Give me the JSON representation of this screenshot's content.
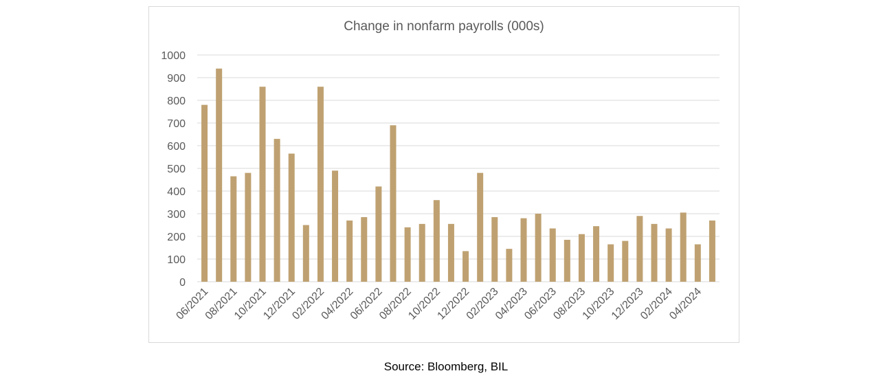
{
  "source": "Source: Bloomberg, BIL",
  "colors": {
    "bar": "#BFA171",
    "grid": "#d9d9d9",
    "text": "#595959",
    "frame": "#d9d9d9"
  },
  "chart_data": {
    "type": "bar",
    "title": "Change in nonfarm payrolls (000s)",
    "xlabel": "",
    "ylabel": "",
    "ylim": [
      0,
      1000
    ],
    "yticks": [
      0,
      100,
      200,
      300,
      400,
      500,
      600,
      700,
      800,
      900,
      1000
    ],
    "grid": true,
    "legend": "none",
    "categories": [
      "06/2021",
      "07/2021",
      "08/2021",
      "09/2021",
      "10/2021",
      "11/2021",
      "12/2021",
      "01/2022",
      "02/2022",
      "03/2022",
      "04/2022",
      "05/2022",
      "06/2022",
      "07/2022",
      "08/2022",
      "09/2022",
      "10/2022",
      "11/2022",
      "12/2022",
      "01/2023",
      "02/2023",
      "03/2023",
      "04/2023",
      "05/2023",
      "06/2023",
      "07/2023",
      "08/2023",
      "09/2023",
      "10/2023",
      "11/2023",
      "12/2023",
      "01/2024",
      "02/2024",
      "03/2024",
      "04/2024",
      "05/2024"
    ],
    "xtick_labels": [
      "06/2021",
      "08/2021",
      "10/2021",
      "12/2021",
      "02/2022",
      "04/2022",
      "06/2022",
      "08/2022",
      "10/2022",
      "12/2022",
      "02/2023",
      "04/2023",
      "06/2023",
      "08/2023",
      "10/2023",
      "12/2023",
      "02/2024",
      "04/2024"
    ],
    "values": [
      780,
      940,
      465,
      480,
      860,
      630,
      565,
      250,
      860,
      490,
      270,
      285,
      420,
      690,
      240,
      255,
      360,
      255,
      135,
      480,
      285,
      145,
      280,
      300,
      235,
      185,
      210,
      245,
      165,
      180,
      290,
      255,
      235,
      305,
      165,
      270
    ]
  }
}
